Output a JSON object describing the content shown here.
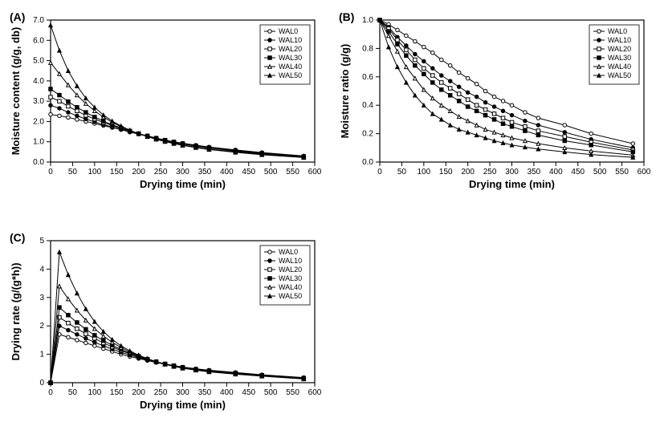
{
  "figure": {
    "background_color": "#ffffff",
    "axis_color": "#000000",
    "grid_color": "#ffffff",
    "line_color": "#000000",
    "line_width": 1.0,
    "font_family": "Arial, sans-serif",
    "label_fontsize": 13,
    "tick_fontsize": 10,
    "legend_fontsize": 9,
    "marker_size": 4.5,
    "legend_markers": [
      {
        "key": "WAL0",
        "fill": "#ffffff",
        "stroke": "#000000",
        "shape": "circle"
      },
      {
        "key": "WAL10",
        "fill": "#000000",
        "stroke": "#000000",
        "shape": "circle"
      },
      {
        "key": "WAL20",
        "fill": "#ffffff",
        "stroke": "#000000",
        "shape": "square"
      },
      {
        "key": "WAL30",
        "fill": "#000000",
        "stroke": "#000000",
        "shape": "square"
      },
      {
        "key": "WAL40",
        "fill": "#ffffff",
        "stroke": "#000000",
        "shape": "triangle"
      },
      {
        "key": "WAL50",
        "fill": "#000000",
        "stroke": "#000000",
        "shape": "triangle"
      }
    ],
    "panels": {
      "A": {
        "caption": "(A)",
        "type": "line",
        "xlabel": "Drying time (min)",
        "ylabel": "Moisture content (g/g, db)",
        "xlim": [
          0,
          600
        ],
        "xtick_step": 50,
        "ylim": [
          0.0,
          7.0
        ],
        "ytick_step": 1.0,
        "y_decimals": 1,
        "x_times": [
          0,
          20,
          40,
          60,
          80,
          100,
          120,
          140,
          160,
          180,
          200,
          220,
          240,
          260,
          280,
          300,
          330,
          360,
          420,
          480,
          575
        ],
        "series": {
          "WAL0": [
            2.35,
            2.28,
            2.2,
            2.1,
            2.0,
            1.9,
            1.8,
            1.7,
            1.6,
            1.48,
            1.38,
            1.28,
            1.18,
            1.08,
            1.0,
            0.93,
            0.83,
            0.74,
            0.6,
            0.47,
            0.3
          ],
          "WAL10": [
            2.8,
            2.65,
            2.45,
            2.28,
            2.12,
            1.98,
            1.85,
            1.72,
            1.6,
            1.48,
            1.38,
            1.28,
            1.18,
            1.08,
            1.0,
            0.92,
            0.82,
            0.73,
            0.58,
            0.45,
            0.29
          ],
          "WAL20": [
            3.2,
            3.0,
            2.75,
            2.52,
            2.3,
            2.12,
            1.95,
            1.8,
            1.65,
            1.52,
            1.4,
            1.29,
            1.18,
            1.08,
            0.99,
            0.91,
            0.8,
            0.71,
            0.56,
            0.43,
            0.27
          ],
          "WAL30": [
            3.6,
            3.3,
            2.98,
            2.7,
            2.45,
            2.22,
            2.02,
            1.84,
            1.68,
            1.53,
            1.4,
            1.28,
            1.17,
            1.07,
            0.97,
            0.89,
            0.78,
            0.69,
            0.54,
            0.41,
            0.26
          ],
          "WAL40": [
            4.9,
            4.35,
            3.8,
            3.3,
            2.88,
            2.52,
            2.22,
            1.96,
            1.74,
            1.56,
            1.4,
            1.26,
            1.14,
            1.03,
            0.93,
            0.84,
            0.73,
            0.64,
            0.5,
            0.38,
            0.24
          ],
          "WAL50": [
            6.75,
            5.5,
            4.5,
            3.75,
            3.15,
            2.7,
            2.32,
            2.02,
            1.78,
            1.57,
            1.4,
            1.25,
            1.12,
            1.01,
            0.91,
            0.82,
            0.71,
            0.62,
            0.48,
            0.36,
            0.22
          ]
        }
      },
      "B": {
        "caption": "(B)",
        "type": "line",
        "xlabel": "Drying time (min)",
        "ylabel": "Moisture ratio (g/g)",
        "xlim": [
          0,
          600
        ],
        "xtick_step": 50,
        "ylim": [
          0.0,
          1.0
        ],
        "ytick_step": 0.2,
        "y_decimals": 1,
        "x_times": [
          0,
          20,
          40,
          60,
          80,
          100,
          120,
          140,
          160,
          180,
          200,
          220,
          240,
          260,
          280,
          300,
          330,
          360,
          420,
          480,
          575
        ],
        "series": {
          "WAL0": [
            1.0,
            0.97,
            0.93,
            0.89,
            0.85,
            0.81,
            0.77,
            0.72,
            0.68,
            0.63,
            0.59,
            0.55,
            0.5,
            0.46,
            0.43,
            0.4,
            0.35,
            0.31,
            0.26,
            0.2,
            0.13
          ],
          "WAL10": [
            1.0,
            0.95,
            0.88,
            0.82,
            0.76,
            0.71,
            0.66,
            0.61,
            0.57,
            0.53,
            0.49,
            0.46,
            0.42,
            0.39,
            0.36,
            0.33,
            0.29,
            0.26,
            0.21,
            0.16,
            0.1
          ],
          "WAL20": [
            1.0,
            0.94,
            0.86,
            0.79,
            0.72,
            0.66,
            0.61,
            0.56,
            0.52,
            0.48,
            0.44,
            0.4,
            0.37,
            0.34,
            0.31,
            0.28,
            0.25,
            0.22,
            0.18,
            0.14,
            0.085
          ],
          "WAL30": [
            1.0,
            0.92,
            0.83,
            0.75,
            0.68,
            0.62,
            0.56,
            0.51,
            0.47,
            0.43,
            0.39,
            0.36,
            0.33,
            0.3,
            0.27,
            0.25,
            0.22,
            0.19,
            0.15,
            0.12,
            0.072
          ],
          "WAL40": [
            1.0,
            0.89,
            0.78,
            0.67,
            0.59,
            0.51,
            0.45,
            0.4,
            0.36,
            0.32,
            0.29,
            0.26,
            0.23,
            0.21,
            0.19,
            0.17,
            0.15,
            0.13,
            0.1,
            0.078,
            0.049
          ],
          "WAL50": [
            1.0,
            0.81,
            0.67,
            0.56,
            0.47,
            0.4,
            0.34,
            0.3,
            0.26,
            0.23,
            0.21,
            0.19,
            0.17,
            0.15,
            0.135,
            0.12,
            0.105,
            0.092,
            0.071,
            0.053,
            0.033
          ]
        }
      },
      "C": {
        "caption": "(C)",
        "type": "line",
        "xlabel": "Drying time (min)",
        "ylabel": "Drying rate (g/(g*h))",
        "xlim": [
          0,
          600
        ],
        "xtick_step": 50,
        "ylim": [
          0,
          5
        ],
        "ytick_step": 1,
        "y_decimals": 0,
        "x_times": [
          0,
          20,
          40,
          60,
          80,
          100,
          120,
          140,
          160,
          180,
          200,
          220,
          240,
          260,
          280,
          300,
          330,
          360,
          420,
          480,
          575
        ],
        "series": {
          "WAL0": [
            0.0,
            1.7,
            1.6,
            1.5,
            1.4,
            1.3,
            1.2,
            1.1,
            1.0,
            0.92,
            0.85,
            0.78,
            0.71,
            0.65,
            0.6,
            0.55,
            0.49,
            0.44,
            0.36,
            0.28,
            0.18
          ],
          "WAL10": [
            0.0,
            2.0,
            1.85,
            1.7,
            1.56,
            1.42,
            1.3,
            1.18,
            1.07,
            0.97,
            0.88,
            0.8,
            0.72,
            0.66,
            0.6,
            0.55,
            0.48,
            0.43,
            0.35,
            0.27,
            0.17
          ],
          "WAL20": [
            0.0,
            2.3,
            2.1,
            1.9,
            1.72,
            1.56,
            1.4,
            1.26,
            1.13,
            1.02,
            0.91,
            0.82,
            0.73,
            0.66,
            0.6,
            0.54,
            0.47,
            0.42,
            0.34,
            0.26,
            0.16
          ],
          "WAL30": [
            0.0,
            2.65,
            2.38,
            2.12,
            1.88,
            1.67,
            1.48,
            1.32,
            1.17,
            1.04,
            0.93,
            0.83,
            0.74,
            0.66,
            0.59,
            0.53,
            0.46,
            0.41,
            0.33,
            0.25,
            0.15
          ],
          "WAL40": [
            0.0,
            3.4,
            2.95,
            2.55,
            2.2,
            1.9,
            1.64,
            1.42,
            1.24,
            1.08,
            0.95,
            0.83,
            0.73,
            0.65,
            0.58,
            0.52,
            0.45,
            0.39,
            0.31,
            0.24,
            0.14
          ],
          "WAL50": [
            0.0,
            4.6,
            3.8,
            3.15,
            2.6,
            2.15,
            1.8,
            1.52,
            1.3,
            1.12,
            0.97,
            0.85,
            0.74,
            0.65,
            0.57,
            0.51,
            0.44,
            0.38,
            0.3,
            0.23,
            0.13
          ]
        }
      }
    }
  }
}
